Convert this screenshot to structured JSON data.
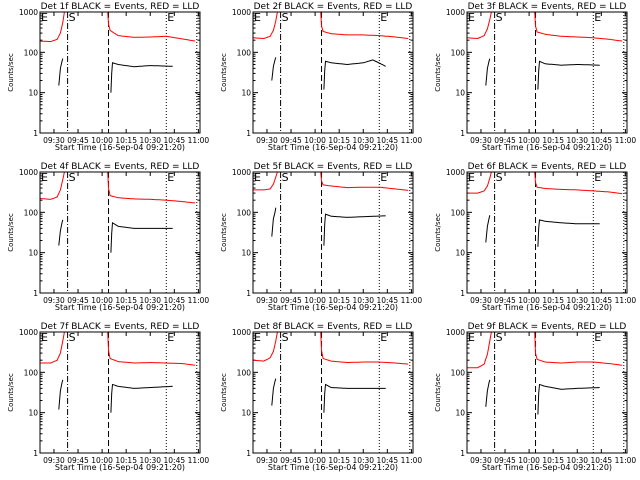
{
  "chart_data": [
    {
      "type": "line",
      "title": "Det 1f BLACK = Events, RED = LLD",
      "xlabel": "Start Time (16-Sep-04 09:21:20)",
      "ylabel": "Counts/sec",
      "red": [
        [
          [
            21.3,
            190
          ],
          [
            28,
            185
          ],
          [
            32,
            210
          ],
          [
            34,
            300
          ],
          [
            35.5,
            550
          ],
          [
            36.5,
            1000
          ]
        ],
        [
          [
            63.5,
            1000
          ],
          [
            64,
            500
          ],
          [
            65,
            350
          ],
          [
            70,
            260
          ],
          [
            80,
            235
          ],
          [
            90,
            240
          ],
          [
            100,
            250
          ],
          [
            110,
            215
          ],
          [
            118,
            190
          ]
        ]
      ],
      "black": [
        [
          [
            33,
            15
          ],
          [
            34,
            40
          ],
          [
            35,
            60
          ],
          [
            35.5,
            70
          ]
        ],
        [
          [
            65.5,
            10
          ],
          [
            66,
            30
          ],
          [
            66.5,
            55
          ],
          [
            70,
            50
          ],
          [
            80,
            44
          ],
          [
            90,
            47
          ],
          [
            104,
            45
          ]
        ]
      ]
    },
    {
      "type": "line",
      "title": "Det 2f BLACK = Events, RED = LLD",
      "xlabel": "Start Time (16-Sep-04 09:21:20)",
      "ylabel": "Counts/sec",
      "red": [
        [
          [
            21.3,
            230
          ],
          [
            28,
            220
          ],
          [
            32,
            250
          ],
          [
            34,
            350
          ],
          [
            35.5,
            600
          ],
          [
            36.5,
            1000
          ]
        ],
        [
          [
            63.5,
            1000
          ],
          [
            64,
            450
          ],
          [
            65,
            330
          ],
          [
            70,
            290
          ],
          [
            80,
            270
          ],
          [
            90,
            270
          ],
          [
            100,
            260
          ],
          [
            110,
            240
          ],
          [
            118,
            220
          ]
        ]
      ],
      "black": [
        [
          [
            33,
            20
          ],
          [
            34,
            45
          ],
          [
            35,
            65
          ],
          [
            35.5,
            75
          ]
        ],
        [
          [
            65.5,
            12
          ],
          [
            66,
            35
          ],
          [
            66.5,
            60
          ],
          [
            70,
            55
          ],
          [
            80,
            50
          ],
          [
            90,
            55
          ],
          [
            96,
            65
          ],
          [
            104,
            45
          ]
        ]
      ]
    },
    {
      "type": "line",
      "title": "Det 3f BLACK = Events, RED = LLD",
      "xlabel": "Start Time (16-Sep-04 09:21:20)",
      "ylabel": "Counts/sec",
      "red": [
        [
          [
            21.3,
            230
          ],
          [
            28,
            220
          ],
          [
            32,
            260
          ],
          [
            34,
            380
          ],
          [
            35.5,
            650
          ],
          [
            36.5,
            1000
          ]
        ],
        [
          [
            63.5,
            1000
          ],
          [
            64,
            450
          ],
          [
            65,
            320
          ],
          [
            70,
            280
          ],
          [
            80,
            250
          ],
          [
            90,
            240
          ],
          [
            100,
            230
          ],
          [
            110,
            210
          ],
          [
            118,
            190
          ]
        ]
      ],
      "black": [
        [
          [
            33,
            15
          ],
          [
            34,
            40
          ],
          [
            35,
            60
          ],
          [
            35.5,
            70
          ]
        ],
        [
          [
            65.5,
            12
          ],
          [
            66,
            35
          ],
          [
            66.5,
            60
          ],
          [
            70,
            52
          ],
          [
            80,
            48
          ],
          [
            90,
            50
          ],
          [
            104,
            48
          ]
        ]
      ]
    },
    {
      "type": "line",
      "title": "Det 4f BLACK = Events, RED = LLD",
      "xlabel": "Start Time (16-Sep-04 09:21:20)",
      "ylabel": "Counts/sec",
      "red": [
        [
          [
            21.3,
            220
          ],
          [
            28,
            210
          ],
          [
            32,
            240
          ],
          [
            34,
            360
          ],
          [
            35.5,
            650
          ],
          [
            36.5,
            1000
          ]
        ],
        [
          [
            63.5,
            1000
          ],
          [
            64,
            400
          ],
          [
            65,
            260
          ],
          [
            70,
            230
          ],
          [
            80,
            215
          ],
          [
            90,
            210
          ],
          [
            100,
            200
          ],
          [
            110,
            185
          ],
          [
            118,
            170
          ]
        ]
      ],
      "black": [
        [
          [
            33,
            15
          ],
          [
            34,
            35
          ],
          [
            35,
            55
          ],
          [
            35.5,
            65
          ]
        ],
        [
          [
            65.5,
            10
          ],
          [
            66,
            30
          ],
          [
            66.5,
            55
          ],
          [
            70,
            45
          ],
          [
            80,
            40
          ],
          [
            90,
            40
          ],
          [
            104,
            40
          ]
        ]
      ]
    },
    {
      "type": "line",
      "title": "Det 5f BLACK = Events, RED = LLD",
      "xlabel": "Start Time (16-Sep-04 09:21:20)",
      "ylabel": "Counts/sec",
      "red": [
        [
          [
            21.3,
            360
          ],
          [
            28,
            360
          ],
          [
            32,
            380
          ],
          [
            34,
            500
          ],
          [
            35.5,
            750
          ],
          [
            36.5,
            1000
          ]
        ],
        [
          [
            63.5,
            1000
          ],
          [
            64,
            600
          ],
          [
            65,
            480
          ],
          [
            70,
            450
          ],
          [
            80,
            410
          ],
          [
            90,
            420
          ],
          [
            100,
            420
          ],
          [
            110,
            380
          ],
          [
            118,
            350
          ]
        ]
      ],
      "black": [
        [
          [
            33,
            25
          ],
          [
            34,
            70
          ],
          [
            35,
            100
          ],
          [
            35.5,
            130
          ]
        ],
        [
          [
            65.5,
            15
          ],
          [
            66,
            50
          ],
          [
            66.5,
            90
          ],
          [
            70,
            80
          ],
          [
            80,
            75
          ],
          [
            90,
            78
          ],
          [
            104,
            82
          ]
        ]
      ]
    },
    {
      "type": "line",
      "title": "Det 6f BLACK = Events, RED = LLD",
      "xlabel": "Start Time (16-Sep-04 09:21:20)",
      "ylabel": "Counts/sec",
      "red": [
        [
          [
            21.3,
            300
          ],
          [
            28,
            300
          ],
          [
            32,
            340
          ],
          [
            34,
            450
          ],
          [
            35.5,
            700
          ],
          [
            36.5,
            1000
          ]
        ],
        [
          [
            63.5,
            1000
          ],
          [
            64,
            550
          ],
          [
            65,
            420
          ],
          [
            70,
            390
          ],
          [
            80,
            370
          ],
          [
            90,
            360
          ],
          [
            100,
            340
          ],
          [
            110,
            320
          ],
          [
            118,
            290
          ]
        ]
      ],
      "black": [
        [
          [
            33,
            18
          ],
          [
            34,
            45
          ],
          [
            35,
            70
          ],
          [
            35.5,
            85
          ]
        ],
        [
          [
            65.5,
            14
          ],
          [
            66,
            40
          ],
          [
            66.5,
            65
          ],
          [
            70,
            60
          ],
          [
            80,
            55
          ],
          [
            90,
            52
          ],
          [
            104,
            52
          ]
        ]
      ]
    },
    {
      "type": "line",
      "title": "Det 7f BLACK = Events, RED = LLD",
      "xlabel": "Start Time (16-Sep-04 09:21:20)",
      "ylabel": "Counts/sec",
      "red": [
        [
          [
            21.3,
            170
          ],
          [
            28,
            170
          ],
          [
            32,
            200
          ],
          [
            34,
            300
          ],
          [
            35.5,
            600
          ],
          [
            36.5,
            1000
          ]
        ],
        [
          [
            63.5,
            1000
          ],
          [
            64,
            350
          ],
          [
            65,
            220
          ],
          [
            70,
            185
          ],
          [
            80,
            170
          ],
          [
            90,
            175
          ],
          [
            100,
            170
          ],
          [
            110,
            165
          ],
          [
            118,
            150
          ]
        ]
      ],
      "black": [
        [
          [
            33,
            12
          ],
          [
            34,
            35
          ],
          [
            35,
            55
          ],
          [
            35.5,
            65
          ]
        ],
        [
          [
            65.5,
            10
          ],
          [
            66,
            30
          ],
          [
            66.5,
            50
          ],
          [
            70,
            45
          ],
          [
            80,
            40
          ],
          [
            90,
            42
          ],
          [
            104,
            45
          ]
        ]
      ]
    },
    {
      "type": "line",
      "title": "Det 8f BLACK = Events, RED = LLD",
      "xlabel": "Start Time (16-Sep-04 09:21:20)",
      "ylabel": "Counts/sec",
      "red": [
        [
          [
            21.3,
            200
          ],
          [
            28,
            190
          ],
          [
            32,
            230
          ],
          [
            34,
            330
          ],
          [
            35.5,
            600
          ],
          [
            36.5,
            1000
          ]
        ],
        [
          [
            63.5,
            1000
          ],
          [
            64,
            350
          ],
          [
            65,
            220
          ],
          [
            70,
            190
          ],
          [
            80,
            175
          ],
          [
            90,
            180
          ],
          [
            100,
            180
          ],
          [
            110,
            170
          ],
          [
            118,
            160
          ]
        ]
      ],
      "black": [
        [
          [
            33,
            15
          ],
          [
            34,
            40
          ],
          [
            35,
            60
          ],
          [
            35.5,
            70
          ]
        ],
        [
          [
            65.5,
            10
          ],
          [
            66,
            30
          ],
          [
            66.5,
            50
          ],
          [
            70,
            42
          ],
          [
            80,
            40
          ],
          [
            90,
            40
          ],
          [
            104,
            40
          ]
        ]
      ]
    },
    {
      "type": "line",
      "title": "Det 9f BLACK = Events, RED = LLD",
      "xlabel": "Start Time (16-Sep-04 09:21:20)",
      "ylabel": "Counts/sec",
      "red": [
        [
          [
            21.3,
            130
          ],
          [
            28,
            130
          ],
          [
            32,
            160
          ],
          [
            34,
            280
          ],
          [
            35.5,
            600
          ],
          [
            36.5,
            1000
          ]
        ],
        [
          [
            63.5,
            1000
          ],
          [
            64,
            300
          ],
          [
            65,
            210
          ],
          [
            70,
            180
          ],
          [
            80,
            170
          ],
          [
            90,
            180
          ],
          [
            100,
            180
          ],
          [
            110,
            165
          ],
          [
            118,
            150
          ]
        ]
      ],
      "black": [
        [
          [
            33,
            14
          ],
          [
            34,
            35
          ],
          [
            35,
            55
          ],
          [
            35.5,
            65
          ]
        ],
        [
          [
            65.5,
            9
          ],
          [
            66,
            30
          ],
          [
            66.5,
            50
          ],
          [
            70,
            45
          ],
          [
            80,
            38
          ],
          [
            90,
            40
          ],
          [
            104,
            42
          ]
        ]
      ]
    }
  ],
  "axes": {
    "xlim_minutes_after_0900": [
      21.3,
      121
    ],
    "ylim": [
      1,
      1000
    ],
    "yscale": "log",
    "xticks": [
      {
        "v": 30,
        "label": "09:30"
      },
      {
        "v": 45,
        "label": "09:45"
      },
      {
        "v": 60,
        "label": "10:00"
      },
      {
        "v": 75,
        "label": "10:15"
      },
      {
        "v": 90,
        "label": "10:30"
      },
      {
        "v": 105,
        "label": "10:45"
      },
      {
        "v": 120,
        "label": "11:00"
      }
    ],
    "yticks": [
      {
        "v": 1,
        "label": "1"
      },
      {
        "v": 10,
        "label": "10"
      },
      {
        "v": 100,
        "label": "100"
      },
      {
        "v": 1000,
        "label": "1000"
      }
    ]
  },
  "markers": [
    {
      "t": 21.3,
      "label": "E",
      "style": "none"
    },
    {
      "t": 38.5,
      "label": "S",
      "style": "dashdot"
    },
    {
      "t": 64,
      "label": "",
      "style": "dashed"
    },
    {
      "t": 100,
      "label": "E",
      "style": "dotted"
    },
    {
      "t": 119,
      "label": "",
      "style": "dotted"
    }
  ],
  "colors": {
    "red": "#ff0000",
    "black": "#000000"
  }
}
